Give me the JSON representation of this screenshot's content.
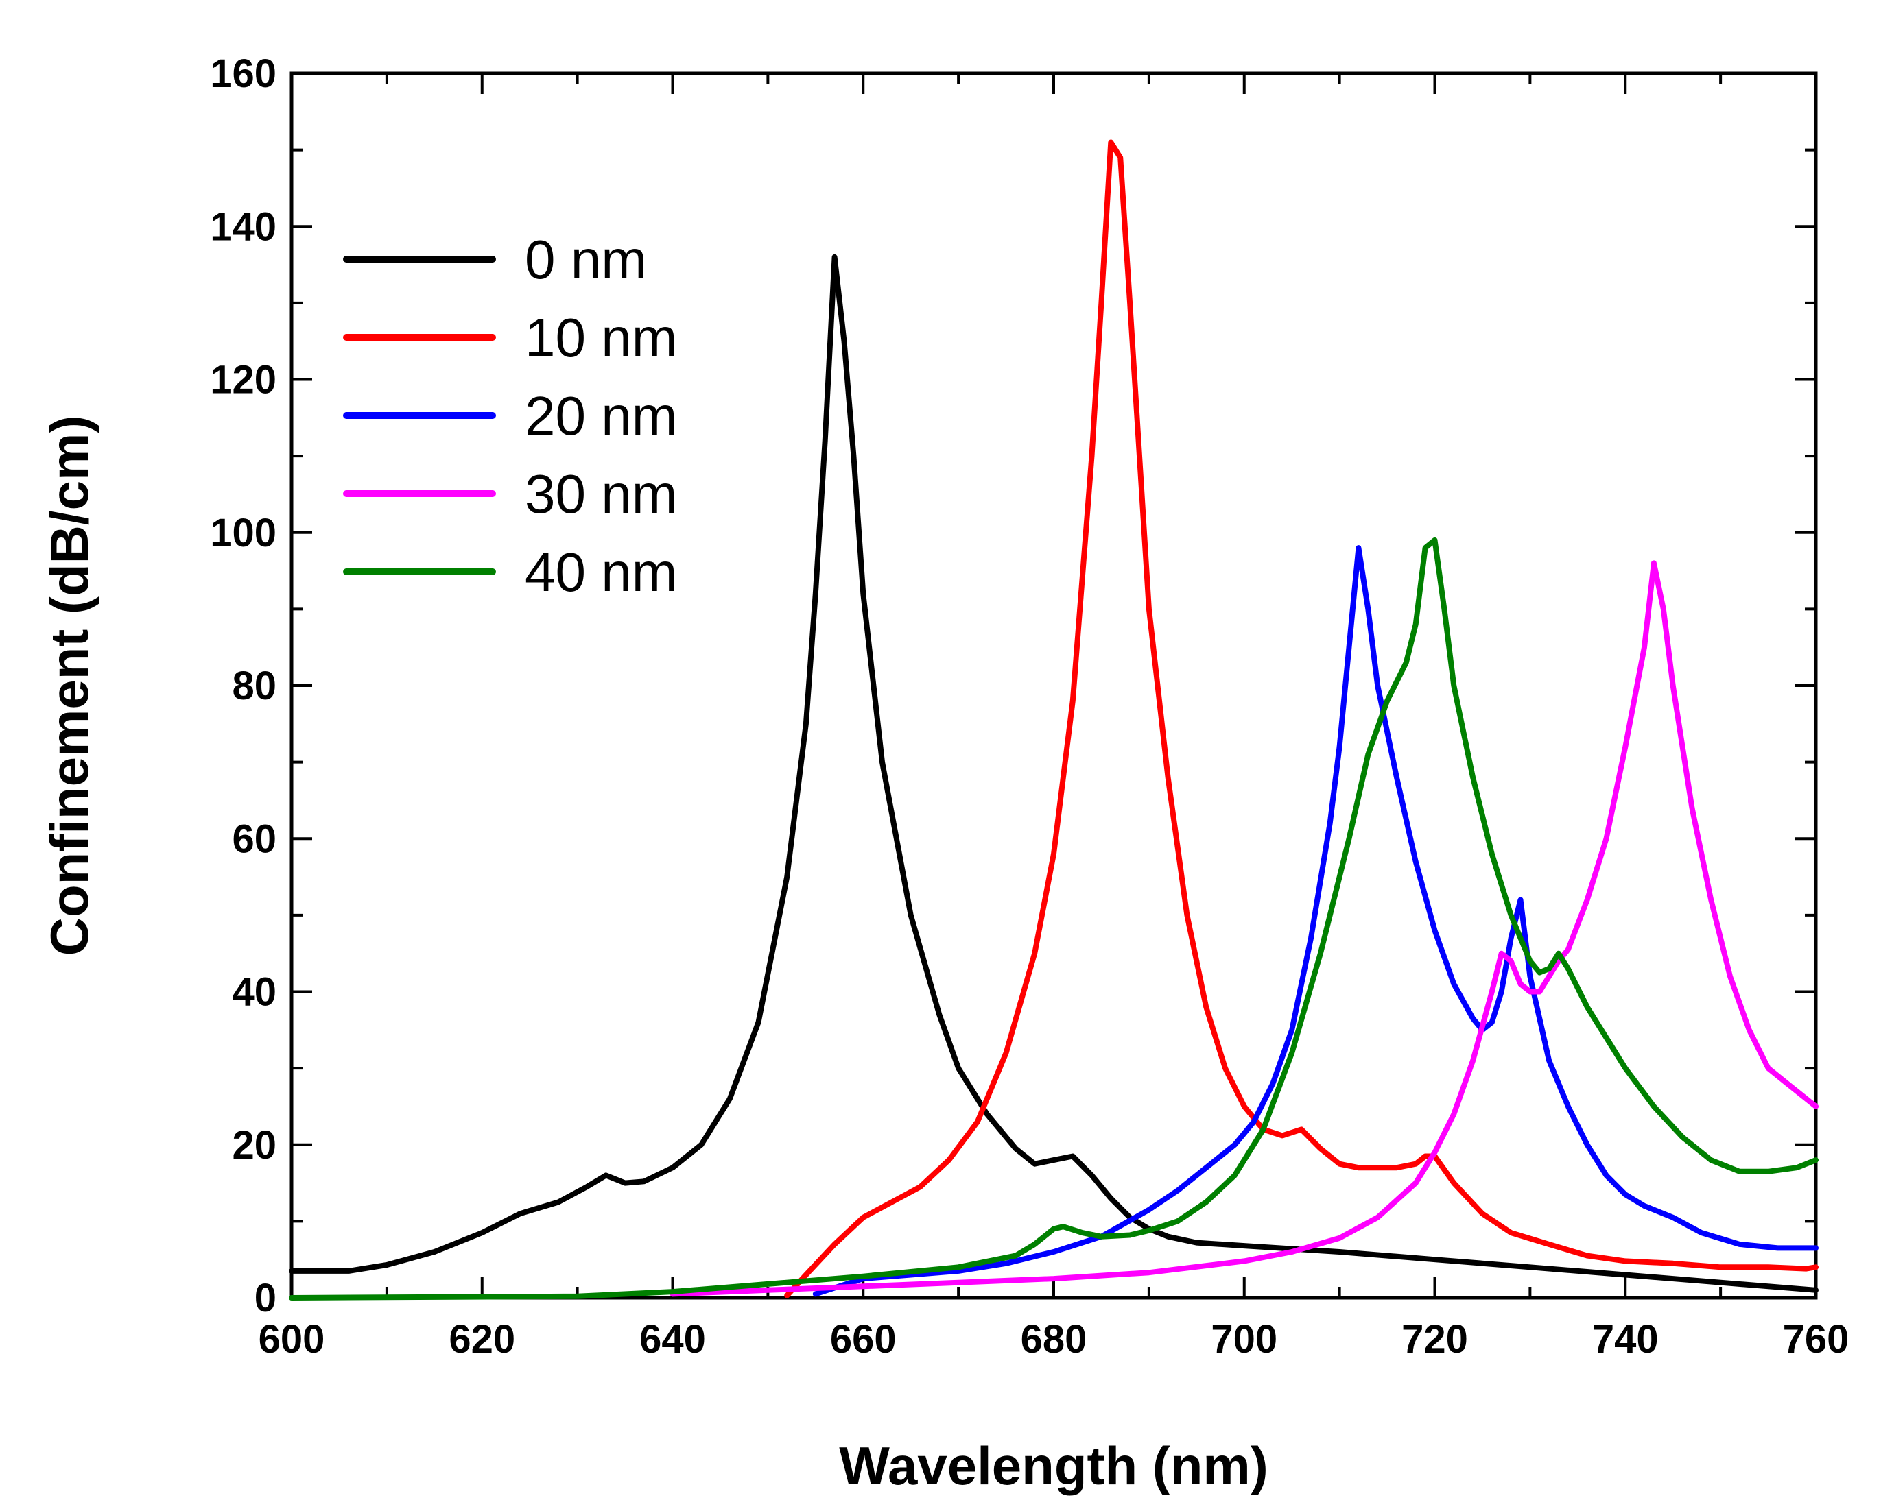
{
  "chart_data": {
    "type": "line",
    "title": "",
    "xlabel": "Wavelength (nm)",
    "ylabel": "Confinement (dB/cm)",
    "xlim": [
      600,
      760
    ],
    "ylim": [
      0,
      160
    ],
    "xticks": [
      600,
      620,
      640,
      660,
      680,
      700,
      720,
      740,
      760
    ],
    "yticks": [
      0,
      20,
      40,
      60,
      80,
      100,
      120,
      140,
      160
    ],
    "xtick_labels": [
      "600",
      "620",
      "640",
      "660",
      "680",
      "700",
      "720",
      "740",
      "760"
    ],
    "ytick_labels": [
      "0",
      "20",
      "40",
      "60",
      "80",
      "100",
      "120",
      "140",
      "160"
    ],
    "grid": false,
    "legend_position": "top-left",
    "series": [
      {
        "name": "0 nm",
        "color": "#000000",
        "points": [
          [
            600,
            3.5
          ],
          [
            606,
            3.5
          ],
          [
            610,
            4.3
          ],
          [
            615,
            6
          ],
          [
            620,
            8.5
          ],
          [
            624,
            11
          ],
          [
            628,
            12.5
          ],
          [
            631,
            14.5
          ],
          [
            633,
            16
          ],
          [
            635,
            15
          ],
          [
            637,
            15.2
          ],
          [
            640,
            17
          ],
          [
            643,
            20
          ],
          [
            646,
            26
          ],
          [
            649,
            36
          ],
          [
            652,
            55
          ],
          [
            654,
            75
          ],
          [
            655,
            92
          ],
          [
            656,
            112
          ],
          [
            657,
            136
          ],
          [
            658,
            125
          ],
          [
            659,
            110
          ],
          [
            660,
            92
          ],
          [
            662,
            70
          ],
          [
            665,
            50
          ],
          [
            668,
            37
          ],
          [
            670,
            30
          ],
          [
            673,
            24
          ],
          [
            676,
            19.5
          ],
          [
            678,
            17.5
          ],
          [
            680,
            18
          ],
          [
            682,
            18.5
          ],
          [
            684,
            16
          ],
          [
            686,
            13
          ],
          [
            688,
            10.5
          ],
          [
            690,
            9
          ],
          [
            692,
            8
          ],
          [
            695,
            7.2
          ],
          [
            700,
            6.8
          ],
          [
            710,
            6
          ],
          [
            720,
            5
          ],
          [
            730,
            4
          ],
          [
            740,
            3
          ],
          [
            750,
            2
          ],
          [
            760,
            1
          ]
        ]
      },
      {
        "name": "10 nm",
        "color": "#ff0000",
        "points": [
          [
            652,
            0.3
          ],
          [
            654,
            3
          ],
          [
            657,
            7
          ],
          [
            660,
            10.5
          ],
          [
            663,
            12.5
          ],
          [
            666,
            14.5
          ],
          [
            669,
            18
          ],
          [
            672,
            23
          ],
          [
            675,
            32
          ],
          [
            678,
            45
          ],
          [
            680,
            58
          ],
          [
            682,
            78
          ],
          [
            684,
            110
          ],
          [
            685,
            130
          ],
          [
            686,
            151
          ],
          [
            687,
            149
          ],
          [
            688,
            130
          ],
          [
            689,
            110
          ],
          [
            690,
            90
          ],
          [
            692,
            68
          ],
          [
            694,
            50
          ],
          [
            696,
            38
          ],
          [
            698,
            30
          ],
          [
            700,
            25
          ],
          [
            702,
            22
          ],
          [
            704,
            21.2
          ],
          [
            706,
            22
          ],
          [
            708,
            19.5
          ],
          [
            710,
            17.5
          ],
          [
            712,
            17
          ],
          [
            714,
            17
          ],
          [
            716,
            17
          ],
          [
            718,
            17.5
          ],
          [
            719,
            18.5
          ],
          [
            720,
            18.5
          ],
          [
            722,
            15
          ],
          [
            725,
            11
          ],
          [
            728,
            8.5
          ],
          [
            732,
            7
          ],
          [
            736,
            5.5
          ],
          [
            740,
            4.8
          ],
          [
            745,
            4.5
          ],
          [
            750,
            4
          ],
          [
            755,
            4
          ],
          [
            759,
            3.8
          ],
          [
            760,
            4
          ]
        ]
      },
      {
        "name": "20 nm",
        "color": "#0000ff",
        "points": [
          [
            655,
            0.5
          ],
          [
            660,
            2.5
          ],
          [
            665,
            3
          ],
          [
            670,
            3.5
          ],
          [
            675,
            4.5
          ],
          [
            680,
            6
          ],
          [
            685,
            8
          ],
          [
            690,
            11.5
          ],
          [
            693,
            14
          ],
          [
            696,
            17
          ],
          [
            699,
            20
          ],
          [
            701,
            23
          ],
          [
            703,
            28
          ],
          [
            705,
            35
          ],
          [
            707,
            47
          ],
          [
            709,
            62
          ],
          [
            710,
            72
          ],
          [
            711,
            85
          ],
          [
            712,
            98
          ],
          [
            713,
            90
          ],
          [
            714,
            80
          ],
          [
            716,
            68
          ],
          [
            718,
            57
          ],
          [
            720,
            48
          ],
          [
            722,
            41
          ],
          [
            724,
            36.5
          ],
          [
            725,
            35
          ],
          [
            726,
            36
          ],
          [
            727,
            40
          ],
          [
            728,
            47
          ],
          [
            729,
            52
          ],
          [
            730,
            42
          ],
          [
            732,
            31
          ],
          [
            734,
            25
          ],
          [
            736,
            20
          ],
          [
            738,
            16
          ],
          [
            740,
            13.5
          ],
          [
            742,
            12
          ],
          [
            745,
            10.5
          ],
          [
            748,
            8.5
          ],
          [
            752,
            7
          ],
          [
            756,
            6.5
          ],
          [
            760,
            6.5
          ]
        ]
      },
      {
        "name": "30 nm",
        "color": "#ff00ff",
        "points": [
          [
            640,
            0.5
          ],
          [
            650,
            1
          ],
          [
            660,
            1.5
          ],
          [
            670,
            2
          ],
          [
            680,
            2.5
          ],
          [
            690,
            3.3
          ],
          [
            700,
            4.8
          ],
          [
            705,
            6
          ],
          [
            710,
            7.8
          ],
          [
            714,
            10.5
          ],
          [
            718,
            15
          ],
          [
            720,
            19
          ],
          [
            722,
            24
          ],
          [
            724,
            31
          ],
          [
            726,
            40
          ],
          [
            727,
            45
          ],
          [
            728,
            44
          ],
          [
            729,
            41
          ],
          [
            730,
            40
          ],
          [
            731,
            40
          ],
          [
            732,
            42
          ],
          [
            733,
            44
          ],
          [
            734,
            45.5
          ],
          [
            736,
            52
          ],
          [
            738,
            60
          ],
          [
            740,
            72
          ],
          [
            742,
            85
          ],
          [
            743,
            96
          ],
          [
            744,
            90
          ],
          [
            745,
            80
          ],
          [
            747,
            64
          ],
          [
            749,
            52
          ],
          [
            751,
            42
          ],
          [
            753,
            35
          ],
          [
            755,
            30
          ],
          [
            757,
            28
          ],
          [
            759,
            26
          ],
          [
            760,
            25
          ]
        ]
      },
      {
        "name": "40 nm",
        "color": "#008000",
        "points": [
          [
            600,
            0
          ],
          [
            630,
            0.2
          ],
          [
            640,
            0.8
          ],
          [
            650,
            1.8
          ],
          [
            660,
            2.8
          ],
          [
            670,
            4
          ],
          [
            676,
            5.5
          ],
          [
            678,
            7
          ],
          [
            680,
            9
          ],
          [
            681,
            9.3
          ],
          [
            683,
            8.5
          ],
          [
            685,
            8
          ],
          [
            688,
            8.2
          ],
          [
            690,
            8.8
          ],
          [
            693,
            10
          ],
          [
            696,
            12.5
          ],
          [
            699,
            16
          ],
          [
            702,
            22
          ],
          [
            705,
            32
          ],
          [
            708,
            45
          ],
          [
            711,
            60
          ],
          [
            713,
            71
          ],
          [
            715,
            78
          ],
          [
            717,
            83
          ],
          [
            718,
            88
          ],
          [
            719,
            98
          ],
          [
            720,
            99
          ],
          [
            721,
            90
          ],
          [
            722,
            80
          ],
          [
            724,
            68
          ],
          [
            726,
            58
          ],
          [
            728,
            50
          ],
          [
            730,
            44
          ],
          [
            731,
            42.5
          ],
          [
            732,
            43
          ],
          [
            733,
            45
          ],
          [
            734,
            43
          ],
          [
            736,
            38
          ],
          [
            738,
            34
          ],
          [
            740,
            30
          ],
          [
            743,
            25
          ],
          [
            746,
            21
          ],
          [
            749,
            18
          ],
          [
            752,
            16.5
          ],
          [
            755,
            16.5
          ],
          [
            758,
            17
          ],
          [
            760,
            18
          ]
        ]
      }
    ]
  }
}
